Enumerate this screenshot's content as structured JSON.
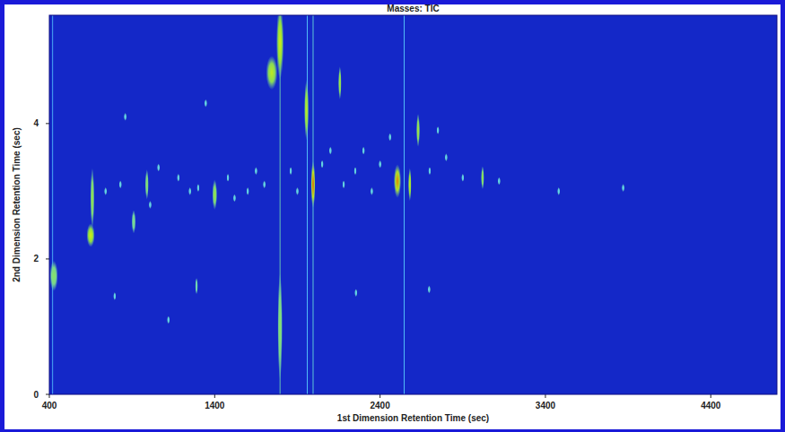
{
  "chart_data": {
    "type": "contour",
    "title": "Masses: TIC",
    "x_label": "1st Dimension Retention Time (sec)",
    "y_label": "2nd Dimension Retention Time (sec)",
    "xlim": [
      400,
      4800
    ],
    "ylim": [
      0,
      5.6
    ],
    "xticks": [
      400,
      1400,
      2400,
      3400,
      4400
    ],
    "yticks": [
      0,
      2,
      4
    ],
    "zlim": [
      0,
      100
    ],
    "grid": false,
    "peaks": {
      "x": [
        427,
        650,
        660,
        1795,
        1745,
        1795,
        1955,
        1995,
        2157,
        2505,
        2580,
        2630,
        3020,
        990,
        910,
        1400,
        1290,
        859,
        1346,
        1060,
        1180,
        1250,
        1300,
        1480,
        1520,
        1600,
        1650,
        1700,
        1860,
        1900,
        2050,
        2100,
        2180,
        2250,
        2300,
        2350,
        2400,
        2460,
        2700,
        2750,
        2800,
        2900,
        3120,
        3480,
        3870,
        2254,
        2697,
        795,
        1120,
        740,
        830,
        1010
      ],
      "y": [
        1.75,
        2.35,
        2.9,
        5.2,
        4.75,
        1.0,
        4.2,
        3.1,
        4.6,
        3.15,
        3.1,
        3.9,
        3.2,
        3.1,
        2.55,
        2.95,
        1.6,
        4.1,
        4.3,
        3.35,
        3.2,
        3.0,
        3.05,
        3.2,
        2.9,
        3.0,
        3.3,
        3.1,
        3.3,
        3.0,
        3.4,
        3.6,
        3.1,
        3.3,
        3.6,
        3.0,
        3.4,
        3.8,
        3.3,
        3.9,
        3.5,
        3.2,
        3.15,
        3.0,
        3.05,
        1.5,
        1.55,
        1.45,
        1.1,
        3.0,
        3.1,
        2.8
      ],
      "intensity": [
        55,
        75,
        60,
        75,
        70,
        55,
        70,
        95,
        65,
        90,
        75,
        65,
        60,
        55,
        50,
        60,
        45,
        35,
        35,
        35,
        35,
        35,
        35,
        35,
        35,
        35,
        35,
        35,
        35,
        35,
        35,
        35,
        35,
        35,
        35,
        35,
        35,
        35,
        35,
        35,
        35,
        35,
        35,
        35,
        35,
        35,
        35,
        35,
        35,
        35,
        35,
        35
      ],
      "widths": [
        50,
        50,
        25,
        45,
        70,
        30,
        28,
        28,
        20,
        45,
        20,
        22,
        20,
        22,
        25,
        30,
        18,
        14,
        14,
        14,
        14,
        14,
        14,
        14,
        14,
        14,
        14,
        14,
        14,
        14,
        14,
        14,
        14,
        14,
        14,
        14,
        14,
        14,
        14,
        14,
        14,
        14,
        14,
        14,
        14,
        14,
        14,
        14,
        14,
        14,
        14,
        14
      ],
      "heights": [
        0.45,
        0.35,
        0.9,
        1.1,
        0.5,
        1.6,
        0.9,
        0.7,
        0.5,
        0.5,
        0.5,
        0.5,
        0.35,
        0.45,
        0.35,
        0.45,
        0.25,
        0.12,
        0.12,
        0.12,
        0.12,
        0.12,
        0.12,
        0.12,
        0.12,
        0.12,
        0.12,
        0.12,
        0.12,
        0.12,
        0.12,
        0.12,
        0.12,
        0.12,
        0.12,
        0.12,
        0.12,
        0.12,
        0.12,
        0.12,
        0.12,
        0.12,
        0.12,
        0.12,
        0.12,
        0.12,
        0.12,
        0.12,
        0.12,
        0.12,
        0.12,
        0.12
      ]
    },
    "streaks": {
      "x": [
        420,
        1795,
        1960,
        1995,
        2546
      ],
      "intensity": [
        30,
        45,
        35,
        40,
        35
      ],
      "widths": [
        8,
        10,
        6,
        6,
        6
      ]
    }
  }
}
